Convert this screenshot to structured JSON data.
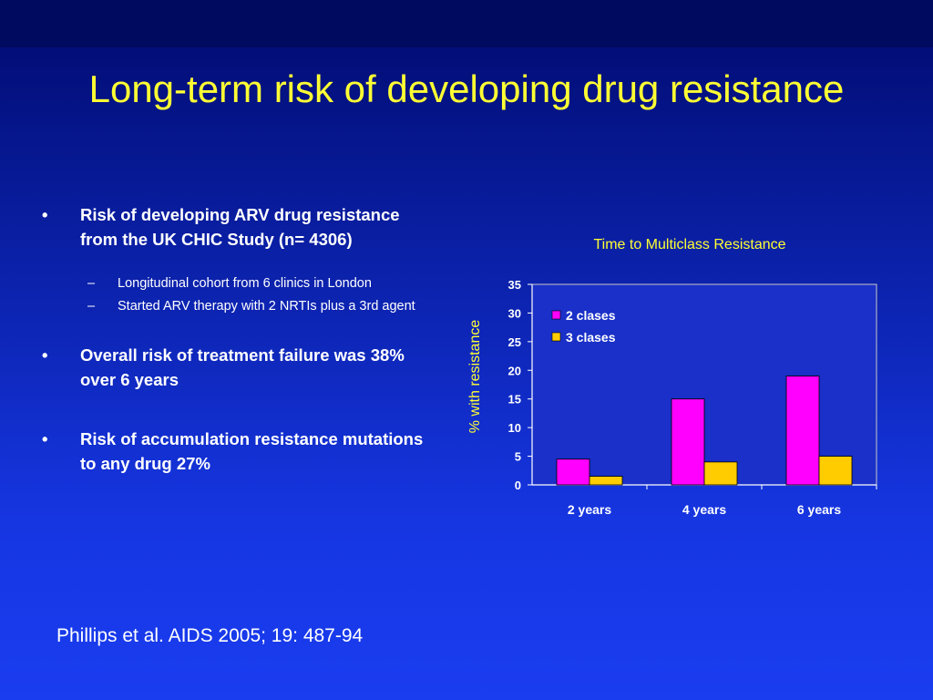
{
  "slide": {
    "title": "Long-term risk of developing drug resistance",
    "bullets": [
      {
        "text": "Risk of developing ARV drug resistance from the UK CHIC Study (n= 4306)",
        "sub": [
          "Longitudinal cohort from 6 clinics in London",
          "Started ARV therapy with 2 NRTIs plus a 3rd agent"
        ]
      },
      {
        "text": "Overall risk of treatment failure was 38% over 6 years"
      },
      {
        "text": "Risk of accumulation resistance mutations to any drug 27%"
      }
    ],
    "bullet_symbol": "•",
    "sub_bullet_symbol": "–",
    "citation": "Phillips et al. AIDS 2005; 19: 487-94"
  },
  "chart_data": {
    "type": "bar",
    "title": "Time to Multiclass Resistance",
    "xlabel": "",
    "ylabel": "% with resistance",
    "categories": [
      "2 years",
      "4 years",
      "6 years"
    ],
    "series": [
      {
        "name": "2 clases",
        "values": [
          4.5,
          15,
          19
        ],
        "color": "#ff00ff"
      },
      {
        "name": "3 clases",
        "values": [
          1.5,
          4,
          5
        ],
        "color": "#ffcc00"
      }
    ],
    "ylim": [
      0,
      35
    ],
    "yticks": [
      0,
      5,
      10,
      15,
      20,
      25,
      30,
      35
    ],
    "grid": false,
    "legend_position": "top-left",
    "plot_background": "#1a30c8",
    "text_color": "#ffffff",
    "title_color": "#ffff33"
  }
}
